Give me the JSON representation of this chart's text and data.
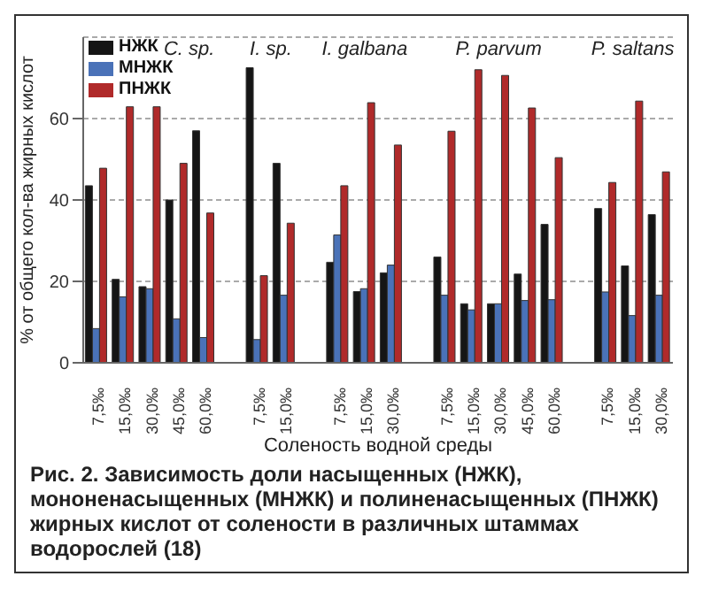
{
  "chart_data": {
    "type": "bar",
    "ylabel": "% от общего кол-ва жирных кислот",
    "xlabel": "Соленость водной среды",
    "categories": [
      "7,5‰",
      "15,0‰",
      "30,0‰",
      "45,0‰",
      "60,0‰",
      null,
      "7,5‰",
      "15,0‰",
      null,
      "7,5‰",
      "15,0‰",
      "30,0‰",
      null,
      "7,5‰",
      "15,0‰",
      "30,0‰",
      "45,0‰",
      "60,0‰",
      null,
      "7,5‰",
      "15,0‰",
      "30,0‰"
    ],
    "series": [
      {
        "name": "НЖК",
        "color": "#151515",
        "values": [
          43.5,
          20.5,
          18.7,
          40,
          57,
          null,
          72.5,
          49,
          null,
          24.7,
          17.5,
          22.1,
          null,
          26,
          14.5,
          14.5,
          21.8,
          34,
          null,
          37.9,
          23.8,
          36.4
        ]
      },
      {
        "name": "МНЖК",
        "color": "#4a72b8",
        "values": [
          8.4,
          16.2,
          18.2,
          10.8,
          6.2,
          null,
          5.7,
          16.6,
          null,
          31.4,
          18.2,
          24,
          null,
          16.6,
          13,
          14.5,
          15.3,
          15.5,
          null,
          17.4,
          11.6,
          16.6
        ]
      },
      {
        "name": "ПНЖК",
        "color": "#b02a2a",
        "values": [
          47.8,
          62.9,
          62.9,
          49,
          36.8,
          null,
          21.4,
          34.3,
          null,
          43.5,
          63.9,
          53.5,
          null,
          56.9,
          72,
          70.6,
          62.6,
          50.4,
          null,
          44.3,
          64.3,
          46.9
        ]
      }
    ],
    "ylim": [
      0,
      80
    ],
    "yticks": [
      0,
      20,
      40,
      60
    ],
    "grid": "y",
    "legend": "top left",
    "annotations": [
      "C. sp.",
      "I. sp.",
      "I. galbana",
      "P. parvum",
      "P. saltans",
      "Рис. 2. Зависимость доли насыщенных (НЖК), мононенасыщенных (МНЖК) и полиненасыщенных (ПНЖК) жирных кислот от солености в различных штаммах водорослей (18)"
    ]
  }
}
